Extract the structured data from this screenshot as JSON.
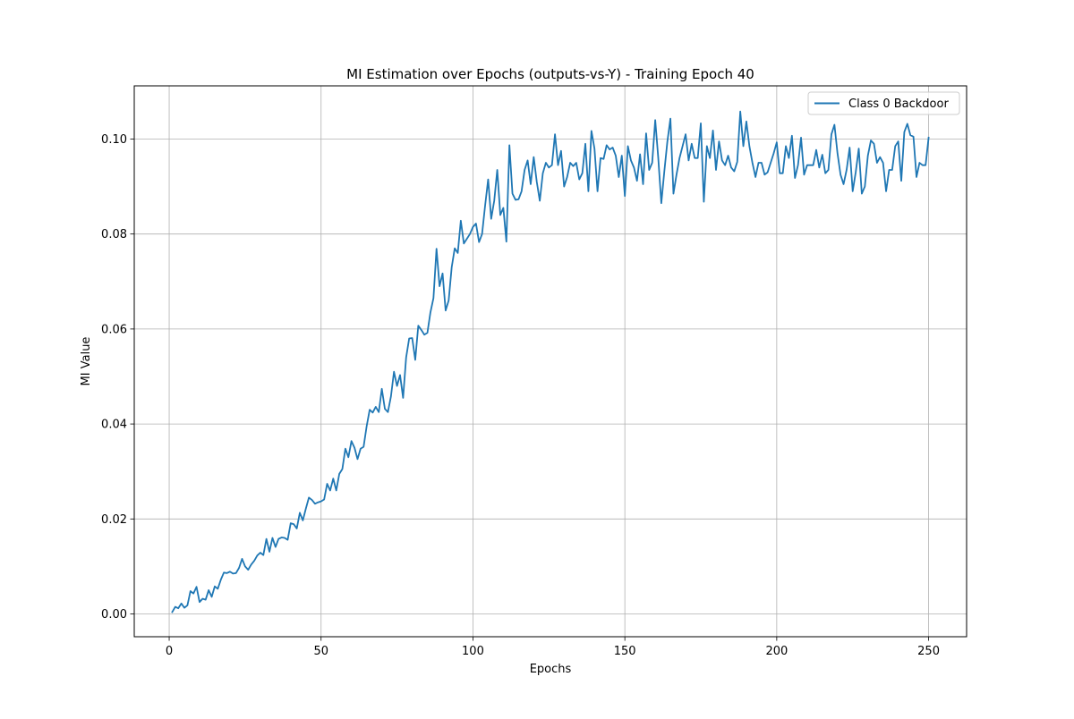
{
  "chart_data": {
    "type": "line",
    "title": "MI Estimation over Epochs (outputs-vs-Y) - Training Epoch 40",
    "xlabel": "Epochs",
    "ylabel": "MI Value",
    "xlim": [
      -11.5,
      262.5
    ],
    "ylim": [
      -0.0048,
      0.1112
    ],
    "xticks": [
      0,
      50,
      100,
      150,
      200,
      250
    ],
    "xtick_labels": [
      "0",
      "50",
      "100",
      "150",
      "200",
      "250"
    ],
    "yticks": [
      0.0,
      0.02,
      0.04,
      0.06,
      0.08,
      0.1
    ],
    "ytick_labels": [
      "0.00",
      "0.02",
      "0.04",
      "0.06",
      "0.08",
      "0.10"
    ],
    "grid": true,
    "legend_position": "top-right",
    "series": [
      {
        "name": "Class 0 Backdoor",
        "color": "#1f77b4",
        "x": [
          1,
          2,
          3,
          4,
          5,
          6,
          7,
          8,
          9,
          10,
          11,
          12,
          13,
          14,
          15,
          16,
          17,
          18,
          19,
          20,
          21,
          22,
          23,
          24,
          25,
          26,
          27,
          28,
          29,
          30,
          31,
          32,
          33,
          34,
          35,
          36,
          37,
          38,
          39,
          40,
          41,
          42,
          43,
          44,
          45,
          46,
          47,
          48,
          49,
          50,
          51,
          52,
          53,
          54,
          55,
          56,
          57,
          58,
          59,
          60,
          61,
          62,
          63,
          64,
          65,
          66,
          67,
          68,
          69,
          70,
          71,
          72,
          73,
          74,
          75,
          76,
          77,
          78,
          79,
          80,
          81,
          82,
          83,
          84,
          85,
          86,
          87,
          88,
          89,
          90,
          91,
          92,
          93,
          94,
          95,
          96,
          97,
          98,
          99,
          100,
          101,
          102,
          103,
          104,
          105,
          106,
          107,
          108,
          109,
          110,
          111,
          112,
          113,
          114,
          115,
          116,
          117,
          118,
          119,
          120,
          121,
          122,
          123,
          124,
          125,
          126,
          127,
          128,
          129,
          130,
          131,
          132,
          133,
          134,
          135,
          136,
          137,
          138,
          139,
          140,
          141,
          142,
          143,
          144,
          145,
          146,
          147,
          148,
          149,
          150,
          151,
          152,
          153,
          154,
          155,
          156,
          157,
          158,
          159,
          160,
          161,
          162,
          163,
          164,
          165,
          166,
          167,
          168,
          169,
          170,
          171,
          172,
          173,
          174,
          175,
          176,
          177,
          178,
          179,
          180,
          181,
          182,
          183,
          184,
          185,
          186,
          187,
          188,
          189,
          190,
          191,
          192,
          193,
          194,
          195,
          196,
          197,
          198,
          199,
          200,
          201,
          202,
          203,
          204,
          205,
          206,
          207,
          208,
          209,
          210,
          211,
          212,
          213,
          214,
          215,
          216,
          217,
          218,
          219,
          220,
          221,
          222,
          223,
          224,
          225,
          226,
          227,
          228,
          229,
          230,
          231,
          232,
          233,
          234,
          235,
          236,
          237,
          238,
          239,
          240,
          241,
          242,
          243,
          244,
          245,
          246,
          247,
          248,
          249,
          250
        ],
        "values": [
          0.0004,
          0.0015,
          0.0012,
          0.0022,
          0.0013,
          0.0018,
          0.0048,
          0.0043,
          0.0057,
          0.0025,
          0.0032,
          0.003,
          0.005,
          0.0036,
          0.0058,
          0.0053,
          0.0072,
          0.0087,
          0.0086,
          0.0089,
          0.0085,
          0.0086,
          0.0097,
          0.0116,
          0.01,
          0.0093,
          0.0104,
          0.0112,
          0.0123,
          0.0129,
          0.0124,
          0.0158,
          0.0131,
          0.016,
          0.0141,
          0.0158,
          0.0161,
          0.016,
          0.0156,
          0.0191,
          0.0189,
          0.018,
          0.0213,
          0.0197,
          0.0222,
          0.0245,
          0.024,
          0.0232,
          0.0235,
          0.0237,
          0.0241,
          0.0274,
          0.026,
          0.0285,
          0.026,
          0.0295,
          0.0305,
          0.0348,
          0.033,
          0.0364,
          0.035,
          0.0326,
          0.0348,
          0.0352,
          0.0395,
          0.043,
          0.0424,
          0.0436,
          0.0425,
          0.0474,
          0.0432,
          0.0425,
          0.0458,
          0.051,
          0.048,
          0.0503,
          0.0455,
          0.054,
          0.058,
          0.0581,
          0.0535,
          0.0607,
          0.0598,
          0.0588,
          0.0592,
          0.0635,
          0.0665,
          0.0769,
          0.069,
          0.0717,
          0.0639,
          0.066,
          0.073,
          0.077,
          0.076,
          0.0828,
          0.078,
          0.079,
          0.08,
          0.0815,
          0.0822,
          0.0783,
          0.08,
          0.086,
          0.0915,
          0.0832,
          0.087,
          0.0935,
          0.084,
          0.0855,
          0.0784,
          0.0987,
          0.0885,
          0.0872,
          0.0873,
          0.089,
          0.0935,
          0.0955,
          0.0905,
          0.0962,
          0.091,
          0.087,
          0.0928,
          0.095,
          0.094,
          0.0945,
          0.101,
          0.0945,
          0.0975,
          0.09,
          0.092,
          0.095,
          0.0943,
          0.095,
          0.0915,
          0.0928,
          0.099,
          0.089,
          0.1017,
          0.098,
          0.089,
          0.096,
          0.0958,
          0.0987,
          0.0978,
          0.0982,
          0.0965,
          0.092,
          0.0965,
          0.088,
          0.0985,
          0.0955,
          0.094,
          0.0912,
          0.0968,
          0.0905,
          0.1012,
          0.0935,
          0.095,
          0.104,
          0.096,
          0.0865,
          0.0932,
          0.0995,
          0.1043,
          0.0885,
          0.0925,
          0.096,
          0.0985,
          0.101,
          0.0955,
          0.099,
          0.096,
          0.096,
          0.1033,
          0.0868,
          0.0985,
          0.096,
          0.1018,
          0.0935,
          0.0995,
          0.0955,
          0.0945,
          0.0965,
          0.094,
          0.0932,
          0.0952,
          0.1058,
          0.0985,
          0.1037,
          0.0985,
          0.095,
          0.092,
          0.095,
          0.095,
          0.0925,
          0.093,
          0.095,
          0.097,
          0.0993,
          0.0928,
          0.0928,
          0.0985,
          0.096,
          0.1007,
          0.0918,
          0.0945,
          0.1003,
          0.0925,
          0.0945,
          0.0945,
          0.0945,
          0.0977,
          0.094,
          0.0967,
          0.0928,
          0.0935,
          0.101,
          0.103,
          0.097,
          0.0925,
          0.0905,
          0.0935,
          0.0982,
          0.089,
          0.093,
          0.098,
          0.0885,
          0.09,
          0.0965,
          0.0997,
          0.099,
          0.095,
          0.0962,
          0.095,
          0.089,
          0.0935,
          0.0935,
          0.0985,
          0.0995,
          0.0912,
          0.1015,
          0.1032,
          0.1008,
          0.1005,
          0.092,
          0.095,
          0.0945,
          0.0945,
          0.1003
        ]
      }
    ]
  }
}
